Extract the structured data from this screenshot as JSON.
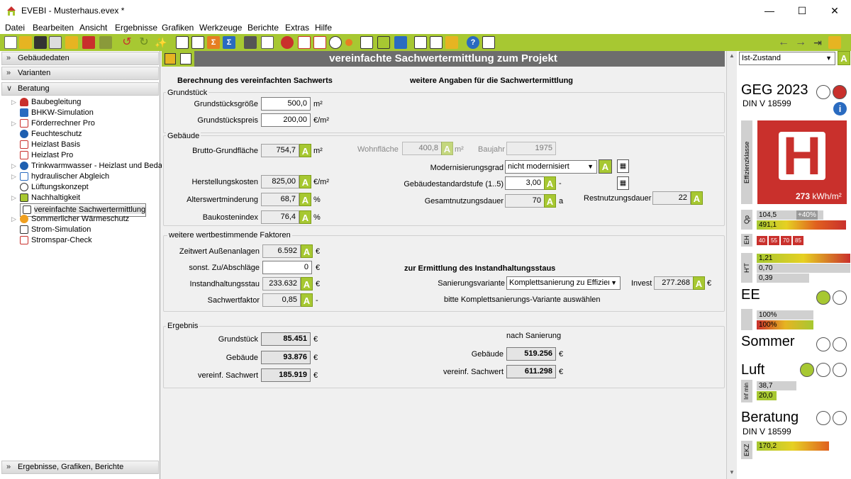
{
  "window": {
    "title": "EVEBI  - Musterhaus.evex *"
  },
  "menu": [
    "Datei",
    "Bearbeiten",
    "Ansicht",
    "Ergebnisse",
    "Grafiken",
    "Werkzeuge",
    "Berichte",
    "Extras",
    "Hilfe"
  ],
  "left": {
    "sections": [
      "Gebäudedaten",
      "Varianten",
      "Beratung"
    ],
    "bottom": "Ergebnisse, Grafiken, Berichte",
    "items": [
      "Baubegleitung",
      "BHKW-Simulation",
      "Förderrechner Pro",
      "Feuchteschutz",
      "Heizlast Basis",
      "Heizlast Pro",
      "Trinkwarmwasser - Heizlast und Bedarf",
      "hydraulischer Abgleich",
      "Lüftungskonzept",
      "Nachhaltigkeit",
      "vereinfachte Sachwertermittlung",
      "Sommerlicher Wärmeschutz",
      "Strom-Simulation",
      "Stromspar-Check"
    ]
  },
  "main": {
    "title": "vereinfachte Sachwertermittlung zum Projekt",
    "head_left": "Berechnung des vereinfachten Sachwerts",
    "head_right": "weitere Angaben für die Sachwertermittlung",
    "grundstueck": {
      "title": "Grundstück",
      "groesse_label": "Grundstücksgröße",
      "groesse": "500,0",
      "groesse_unit": "m²",
      "preis_label": "Grundstückspreis",
      "preis": "200,00",
      "preis_unit": "€/m²"
    },
    "gebaeude": {
      "title": "Gebäude",
      "bgf_label": "Brutto-Grundfläche",
      "bgf": "754,7",
      "bgf_unit": "m²",
      "wohn_label": "Wohnfläche",
      "wohn": "400,8",
      "wohn_unit": "m²",
      "baujahr_label": "Baujahr",
      "baujahr": "1975",
      "modgrad_label": "Modernisierungsgrad",
      "modgrad": "nicht modernisiert",
      "herst_label": "Herstellungskosten",
      "herst": "825,00",
      "herst_unit": "€/m²",
      "std_label": "Gebäudestandardstufe (1..5)",
      "std": "3,00",
      "std_unit": "-",
      "alter_label": "Alterswertminderung",
      "alter": "68,7",
      "alter_unit": "%",
      "gnd_label": "Gesamtnutzungsdauer",
      "gnd": "70",
      "gnd_unit": "a",
      "rnd_label": "Restnutzungsdauer",
      "rnd": "22",
      "bki_label": "Baukostenindex",
      "bki": "76,4",
      "bki_unit": "%"
    },
    "faktoren": {
      "title": "weitere wertbestimmende Faktoren",
      "zeitwert_label": "Zeitwert Außenanlagen",
      "zeitwert": "6.592",
      "zeitwert_unit": "€",
      "zu_label": "sonst. Zu/Abschläge",
      "zu": "0",
      "zu_unit": "€",
      "stau_label": "Instandhaltungsstau",
      "stau": "233.632",
      "stau_unit": "€",
      "faktor_label": "Sachwertfaktor",
      "faktor": "0,85",
      "faktor_unit": "-",
      "stau_head": "zur Ermittlung des Instandhaltungsstaus",
      "sanvar_label": "Sanierungsvariante",
      "sanvar": "Komplettsanierung zu Effizienz",
      "invest_label": "Invest",
      "invest": "277.268",
      "invest_unit": "€",
      "hinweis": "bitte Komplettsanierungs-Variante auswählen"
    },
    "ergebnis": {
      "title": "Ergebnis",
      "grund_label": "Grundstück",
      "grund": "85.451",
      "geb_label": "Gebäude",
      "geb": "93.876",
      "sw_label": "vereinf. Sachwert",
      "sw": "185.919",
      "unit": "€",
      "nach_label": "nach Sanierung",
      "nach_geb_label": "Gebäude",
      "nach_geb": "519.256",
      "nach_sw_label": "vereinf. Sachwert",
      "nach_sw": "611.298"
    }
  },
  "right": {
    "variant": "Ist-Zustand",
    "geg": "GEG 2023",
    "din": "DIN V 18599",
    "eff_label": "Effizienzklasse",
    "eff_class": "H",
    "eff_value": "273",
    "eff_unit": "kWh/m²",
    "qp_label": "Qp",
    "qp1": "104,5",
    "qp1b": "+40%",
    "qp2": "491,1",
    "eh_label": "EH",
    "eh": [
      "40",
      "55",
      "70",
      "85"
    ],
    "ht_label": "H'T",
    "ht1": "1,21",
    "ht2": "0,70",
    "ht3": "0,39",
    "ee": "EE",
    "ee1": "100%",
    "ee2": "100%",
    "sommer": "Sommer",
    "luft": "Luft",
    "inf_label": "Inf min",
    "inf1": "38,7",
    "inf2": "20,0",
    "beratung": "Beratung",
    "din2": "DIN V 18599",
    "ekz_label": "EKZ",
    "ekz": "170,2",
    "colors": {
      "accent": "#a7c832",
      "red": "#c9302c"
    }
  }
}
